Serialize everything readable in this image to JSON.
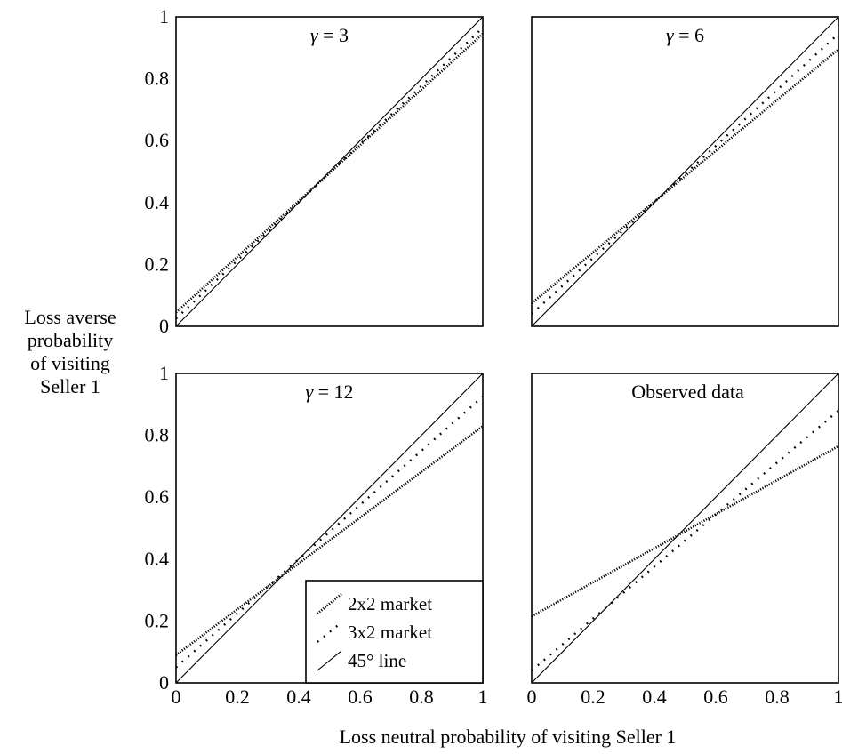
{
  "figure": {
    "ylabel_lines": [
      "Loss averse",
      "probability",
      "of visiting",
      "Seller 1"
    ],
    "xlabel": "Loss neutral probability of visiting Seller 1"
  },
  "legend": {
    "entries": [
      "2x2 market",
      "3x2 market",
      "45° line"
    ]
  },
  "chart_data": [
    {
      "type": "line",
      "title": "γ = 3",
      "title_greek": "γ",
      "title_rest": " = 3",
      "xlim": [
        0,
        1
      ],
      "ylim": [
        0,
        1
      ],
      "show_x_ticks": false,
      "show_y_ticks": true,
      "x_ticks": [
        "0",
        "0.2",
        "0.4",
        "0.6",
        "0.8",
        "1"
      ],
      "y_ticks": [
        "0",
        "0.2",
        "0.4",
        "0.6",
        "0.8",
        "1"
      ],
      "series": [
        {
          "name": "2x2 market",
          "style": "densedot",
          "x": [
            0,
            1
          ],
          "y": [
            0.045,
            0.945
          ]
        },
        {
          "name": "3x2 market",
          "style": "dotted",
          "x": [
            0,
            1
          ],
          "y": [
            0.025,
            0.965
          ]
        },
        {
          "name": "45° line",
          "style": "solid",
          "x": [
            0,
            1
          ],
          "y": [
            0,
            1
          ]
        }
      ]
    },
    {
      "type": "line",
      "title": "γ = 6",
      "title_greek": "γ",
      "title_rest": " = 6",
      "xlim": [
        0,
        1
      ],
      "ylim": [
        0,
        1
      ],
      "show_x_ticks": false,
      "show_y_ticks": false,
      "x_ticks": [
        "0",
        "0.2",
        "0.4",
        "0.6",
        "0.8",
        "1"
      ],
      "y_ticks": [
        "0",
        "0.2",
        "0.4",
        "0.6",
        "0.8",
        "1"
      ],
      "series": [
        {
          "name": "2x2 market",
          "style": "densedot",
          "x": [
            0,
            1
          ],
          "y": [
            0.075,
            0.895
          ]
        },
        {
          "name": "3x2 market",
          "style": "dotted",
          "x": [
            0,
            1
          ],
          "y": [
            0.04,
            0.945
          ]
        },
        {
          "name": "45° line",
          "style": "solid",
          "x": [
            0,
            1
          ],
          "y": [
            0,
            1
          ]
        }
      ]
    },
    {
      "type": "line",
      "title": "γ = 12",
      "title_greek": "γ",
      "title_rest": " = 12",
      "xlim": [
        0,
        1
      ],
      "ylim": [
        0,
        1
      ],
      "show_x_ticks": true,
      "show_y_ticks": true,
      "x_ticks": [
        "0",
        "0.2",
        "0.4",
        "0.6",
        "0.8",
        "1"
      ],
      "y_ticks": [
        "0",
        "0.2",
        "0.4",
        "0.6",
        "0.8",
        "1"
      ],
      "series": [
        {
          "name": "2x2 market",
          "style": "densedot",
          "x": [
            0,
            1
          ],
          "y": [
            0.09,
            0.83
          ]
        },
        {
          "name": "3x2 market",
          "style": "dotted",
          "x": [
            0,
            1
          ],
          "y": [
            0.05,
            0.925
          ]
        },
        {
          "name": "45° line",
          "style": "solid",
          "x": [
            0,
            1
          ],
          "y": [
            0,
            1
          ]
        }
      ],
      "has_legend": true
    },
    {
      "type": "line",
      "title": "Observed data",
      "title_greek": "",
      "title_rest": "Observed data",
      "xlim": [
        0,
        1
      ],
      "ylim": [
        0,
        1
      ],
      "show_x_ticks": true,
      "show_y_ticks": false,
      "x_ticks": [
        "0",
        "0.2",
        "0.4",
        "0.6",
        "0.8",
        "1"
      ],
      "y_ticks": [
        "0",
        "0.2",
        "0.4",
        "0.6",
        "0.8",
        "1"
      ],
      "series": [
        {
          "name": "2x2 market",
          "style": "densedot",
          "x": [
            0,
            1
          ],
          "y": [
            0.215,
            0.765
          ]
        },
        {
          "name": "3x2 market",
          "style": "dotted",
          "x": [
            0,
            1
          ],
          "y": [
            0.04,
            0.88
          ]
        },
        {
          "name": "45° line",
          "style": "solid",
          "x": [
            0,
            1
          ],
          "y": [
            0,
            1
          ]
        }
      ]
    }
  ]
}
